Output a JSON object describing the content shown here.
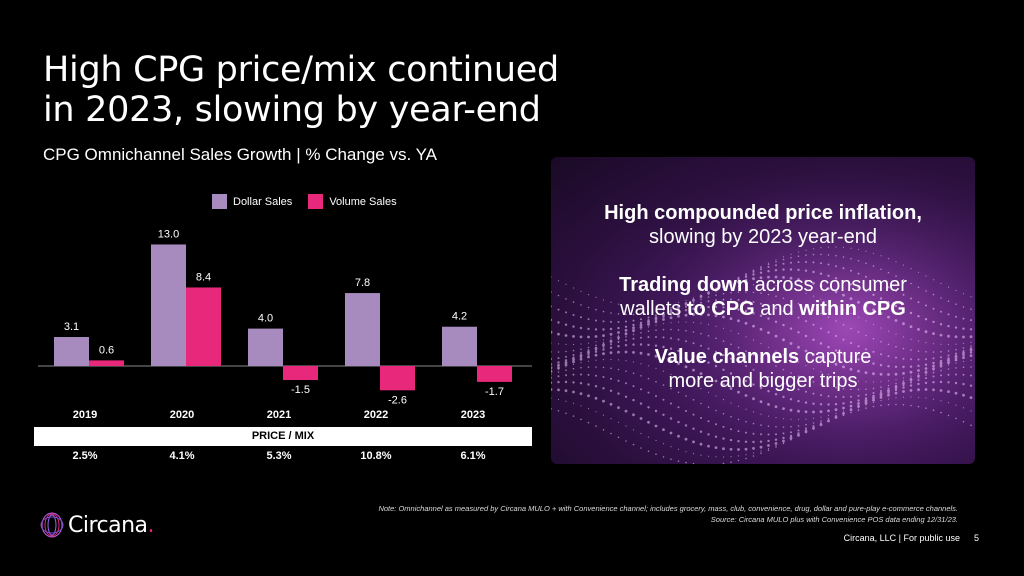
{
  "title": {
    "line1": "High CPG price/mix continued",
    "line2": "in 2023, slowing by year-end"
  },
  "subtitle": "CPG Omnichannel Sales Growth  | % Change vs. YA",
  "colors": {
    "dollar": "#a78bbf",
    "volume": "#e8287a",
    "price_mix_bg": "#ffffff"
  },
  "chart_data": {
    "type": "bar",
    "title": "CPG Omnichannel Sales Growth | % Change vs. YA",
    "categories": [
      "2019",
      "2020",
      "2021",
      "2022",
      "2023"
    ],
    "series": [
      {
        "name": "Dollar Sales",
        "values": [
          3.1,
          13.0,
          4.0,
          7.8,
          4.2
        ],
        "labels": [
          "3.1",
          "13.0",
          "4.0",
          "7.8",
          "4.2"
        ]
      },
      {
        "name": "Volume Sales",
        "values": [
          0.6,
          8.4,
          -1.5,
          -2.6,
          -1.7
        ],
        "labels": [
          "0.6",
          "8.4",
          "-1.5",
          "-2.6",
          "-1.7"
        ]
      }
    ],
    "xlabel": "",
    "ylabel": "",
    "ylim": [
      -3,
      14
    ],
    "grid": false,
    "legend": "top-center"
  },
  "price_mix": {
    "header": "PRICE / MIX",
    "values": [
      "2.5%",
      "4.1%",
      "5.3%",
      "10.8%",
      "6.1%"
    ]
  },
  "panel": {
    "p1_bold": "High compounded price inflation,",
    "p1_rest": "slowing by 2023 year-end",
    "p2_bold1": "Trading down",
    "p2_text1": " across consumer",
    "p2_text2": "wallets ",
    "p2_bold2": "to CPG",
    "p2_text3": " and ",
    "p2_bold3": "within CPG",
    "p3_bold": "Value channels",
    "p3_text1": " capture",
    "p3_text2": "more and bigger trips"
  },
  "note": {
    "line1": "Note: Omnichannel as measured by Circana MULO + with Convenience channel; includes grocery, mass, club, convenience, drug, dollar and pure-play e-commerce channels.",
    "line2": "Source: Circana MULO plus with Convenience POS data ending 12/31/23."
  },
  "logo": {
    "text": "Circana",
    "dot": "."
  },
  "footer": "Circana, LLC | For public use",
  "page_number": "5"
}
